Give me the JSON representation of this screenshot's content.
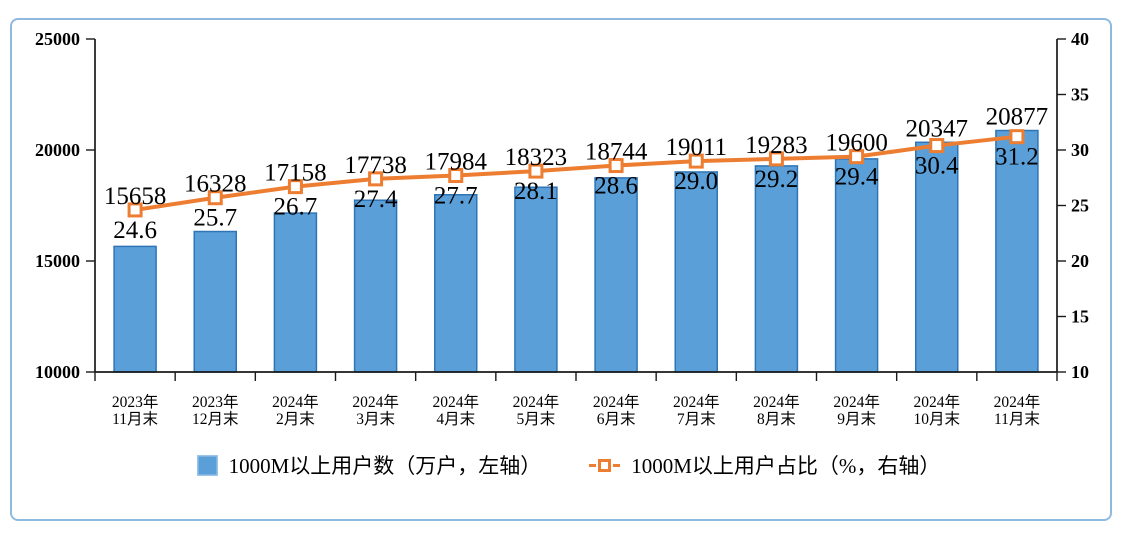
{
  "chart_data": {
    "type": "combo-bar-line",
    "categories": [
      [
        "2023年",
        "11月末"
      ],
      [
        "2023年",
        "12月末"
      ],
      [
        "2024年",
        "2月末"
      ],
      [
        "2024年",
        "3月末"
      ],
      [
        "2024年",
        "4月末"
      ],
      [
        "2024年",
        "5月末"
      ],
      [
        "2024年",
        "6月末"
      ],
      [
        "2024年",
        "7月末"
      ],
      [
        "2024年",
        "8月末"
      ],
      [
        "2024年",
        "9月末"
      ],
      [
        "2024年",
        "10月末"
      ],
      [
        "2024年",
        "11月末"
      ]
    ],
    "series": [
      {
        "name": "1000M以上用户数（万户，左轴）",
        "type": "bar",
        "axis": "left",
        "color": "#5B9FD9",
        "border_color": "#2E75B6",
        "values": [
          15658,
          16328,
          17158,
          17738,
          17984,
          18323,
          18744,
          19011,
          19283,
          19600,
          20347,
          20877
        ],
        "labels": [
          "15658",
          "16328",
          "17158",
          "17738",
          "17984",
          "18323",
          "18744",
          "19011",
          "19283",
          "19600",
          "20347",
          "20877"
        ]
      },
      {
        "name": "1000M以上用户占比（%，右轴）",
        "type": "line",
        "axis": "right",
        "color": "#ED7D31",
        "marker": "open-square",
        "values": [
          24.6,
          25.7,
          26.7,
          27.4,
          27.7,
          28.1,
          28.6,
          29.0,
          29.2,
          29.4,
          30.4,
          31.2
        ],
        "labels": [
          "24.6",
          "25.7",
          "26.7",
          "27.4",
          "27.7",
          "28.1",
          "28.6",
          "29.0",
          "29.2",
          "29.4",
          "30.4",
          "31.2"
        ]
      }
    ],
    "left_axis": {
      "min": 10000,
      "max": 25000,
      "step": 5000,
      "ticks": [
        "25000",
        "20000",
        "15000",
        "10000"
      ]
    },
    "right_axis": {
      "min": 10,
      "max": 40,
      "step": 5,
      "ticks": [
        "40",
        "35",
        "30",
        "25",
        "20",
        "15",
        "10"
      ]
    },
    "legend_position": "bottom",
    "grid": false,
    "axis_color": "#1a1a1a"
  }
}
